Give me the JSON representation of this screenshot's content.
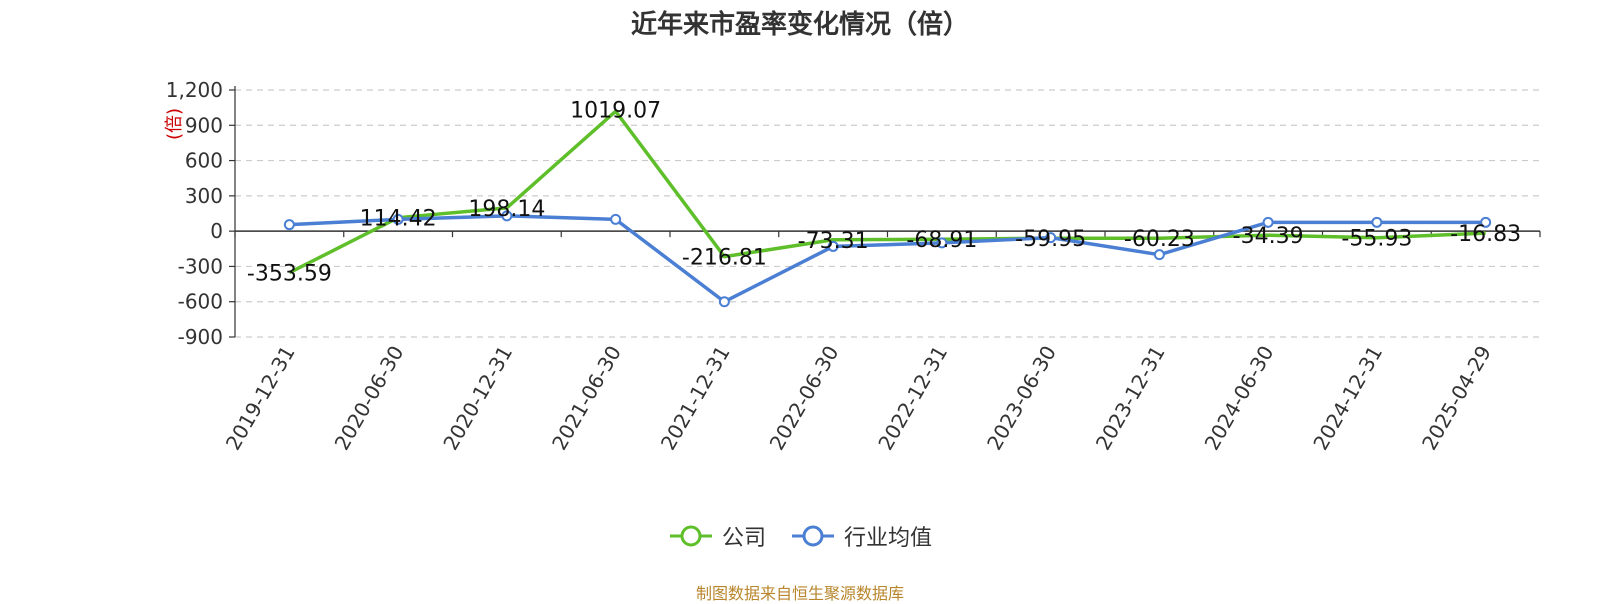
{
  "chart_data": {
    "type": "line",
    "title": "近年来市盈率变化情况（倍）",
    "ylabel": "(倍)",
    "ylim": [
      -900,
      1200
    ],
    "yticks": [
      1200,
      900,
      600,
      300,
      0,
      -300,
      -600,
      -900
    ],
    "ytick_labels": [
      "1,200",
      "900",
      "600",
      "300",
      "0",
      "-300",
      "-600",
      "-900"
    ],
    "categories": [
      "2019-12-31",
      "2020-06-30",
      "2020-12-31",
      "2021-06-30",
      "2021-12-31",
      "2022-06-30",
      "2022-12-31",
      "2023-06-30",
      "2023-12-31",
      "2024-06-30",
      "2024-12-31",
      "2025-04-29"
    ],
    "grid": true,
    "legend_position": "bottom",
    "series": [
      {
        "name": "公司",
        "color": "#5fbf2a",
        "values": [
          -353.59,
          114.42,
          198.14,
          1019.07,
          -216.81,
          -73.31,
          -68.91,
          -59.95,
          -60.23,
          -34.39,
          -55.93,
          -16.83
        ],
        "labels": [
          "-353.59",
          "114.42",
          "198.14",
          "1019.07",
          "-216.81",
          "-73.31",
          "-68.91",
          "-59.95",
          "-60.23",
          "-34.39",
          "-55.93",
          "-16.83"
        ]
      },
      {
        "name": "行业均值",
        "color": "#4a7fd4",
        "values": [
          55,
          100,
          130,
          100,
          -600,
          -130,
          -100,
          -55,
          -200,
          75,
          75,
          75
        ]
      }
    ]
  },
  "footer": {
    "source": "制图数据来自恒生聚源数据库"
  }
}
